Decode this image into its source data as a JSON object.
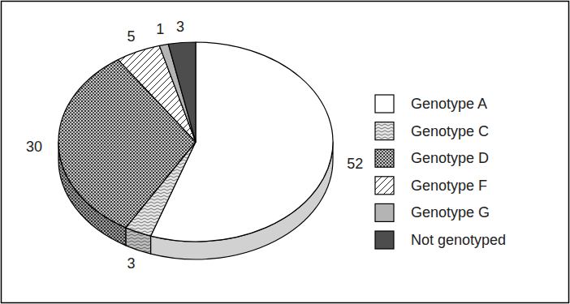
{
  "chart_data": {
    "type": "pie",
    "categories": [
      "Genotype A",
      "Genotype C",
      "Genotype D",
      "Genotype F",
      "Genotype G",
      "Not genotyped"
    ],
    "values": [
      52,
      3,
      30,
      5,
      1,
      3
    ],
    "colors": [
      "#ffffff",
      "#e6e6e6",
      "#c8c8c8",
      "#ffffff",
      "#b4b4b4",
      "#4d4d4d"
    ],
    "data_labels": true,
    "legend": "right"
  }
}
